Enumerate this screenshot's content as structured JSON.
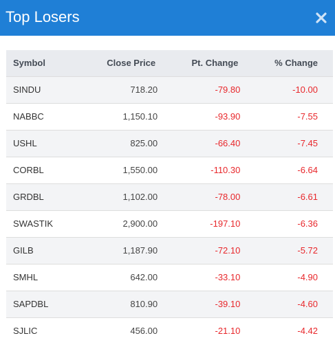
{
  "header": {
    "title": "Top Losers",
    "close_icon": "close-icon",
    "background": "#1f7fd6"
  },
  "table": {
    "columns": [
      "Symbol",
      "Close Price",
      "Pt. Change",
      "% Change"
    ],
    "rows": [
      {
        "symbol": "SINDU",
        "close": "718.20",
        "pt": "-79.80",
        "pct": "-10.00"
      },
      {
        "symbol": "NABBC",
        "close": "1,150.10",
        "pt": "-93.90",
        "pct": "-7.55"
      },
      {
        "symbol": "USHL",
        "close": "825.00",
        "pt": "-66.40",
        "pct": "-7.45"
      },
      {
        "symbol": "CORBL",
        "close": "1,550.00",
        "pt": "-110.30",
        "pct": "-6.64"
      },
      {
        "symbol": "GRDBL",
        "close": "1,102.00",
        "pt": "-78.00",
        "pct": "-6.61"
      },
      {
        "symbol": "SWASTIK",
        "close": "2,900.00",
        "pt": "-197.10",
        "pct": "-6.36"
      },
      {
        "symbol": "GILB",
        "close": "1,187.90",
        "pt": "-72.10",
        "pct": "-5.72"
      },
      {
        "symbol": "SMHL",
        "close": "642.00",
        "pt": "-33.10",
        "pct": "-4.90"
      },
      {
        "symbol": "SAPDBL",
        "close": "810.90",
        "pt": "-39.10",
        "pct": "-4.60"
      },
      {
        "symbol": "SJLIC",
        "close": "456.00",
        "pt": "-21.10",
        "pct": "-4.42"
      }
    ],
    "negative_color": "#e8272b"
  }
}
